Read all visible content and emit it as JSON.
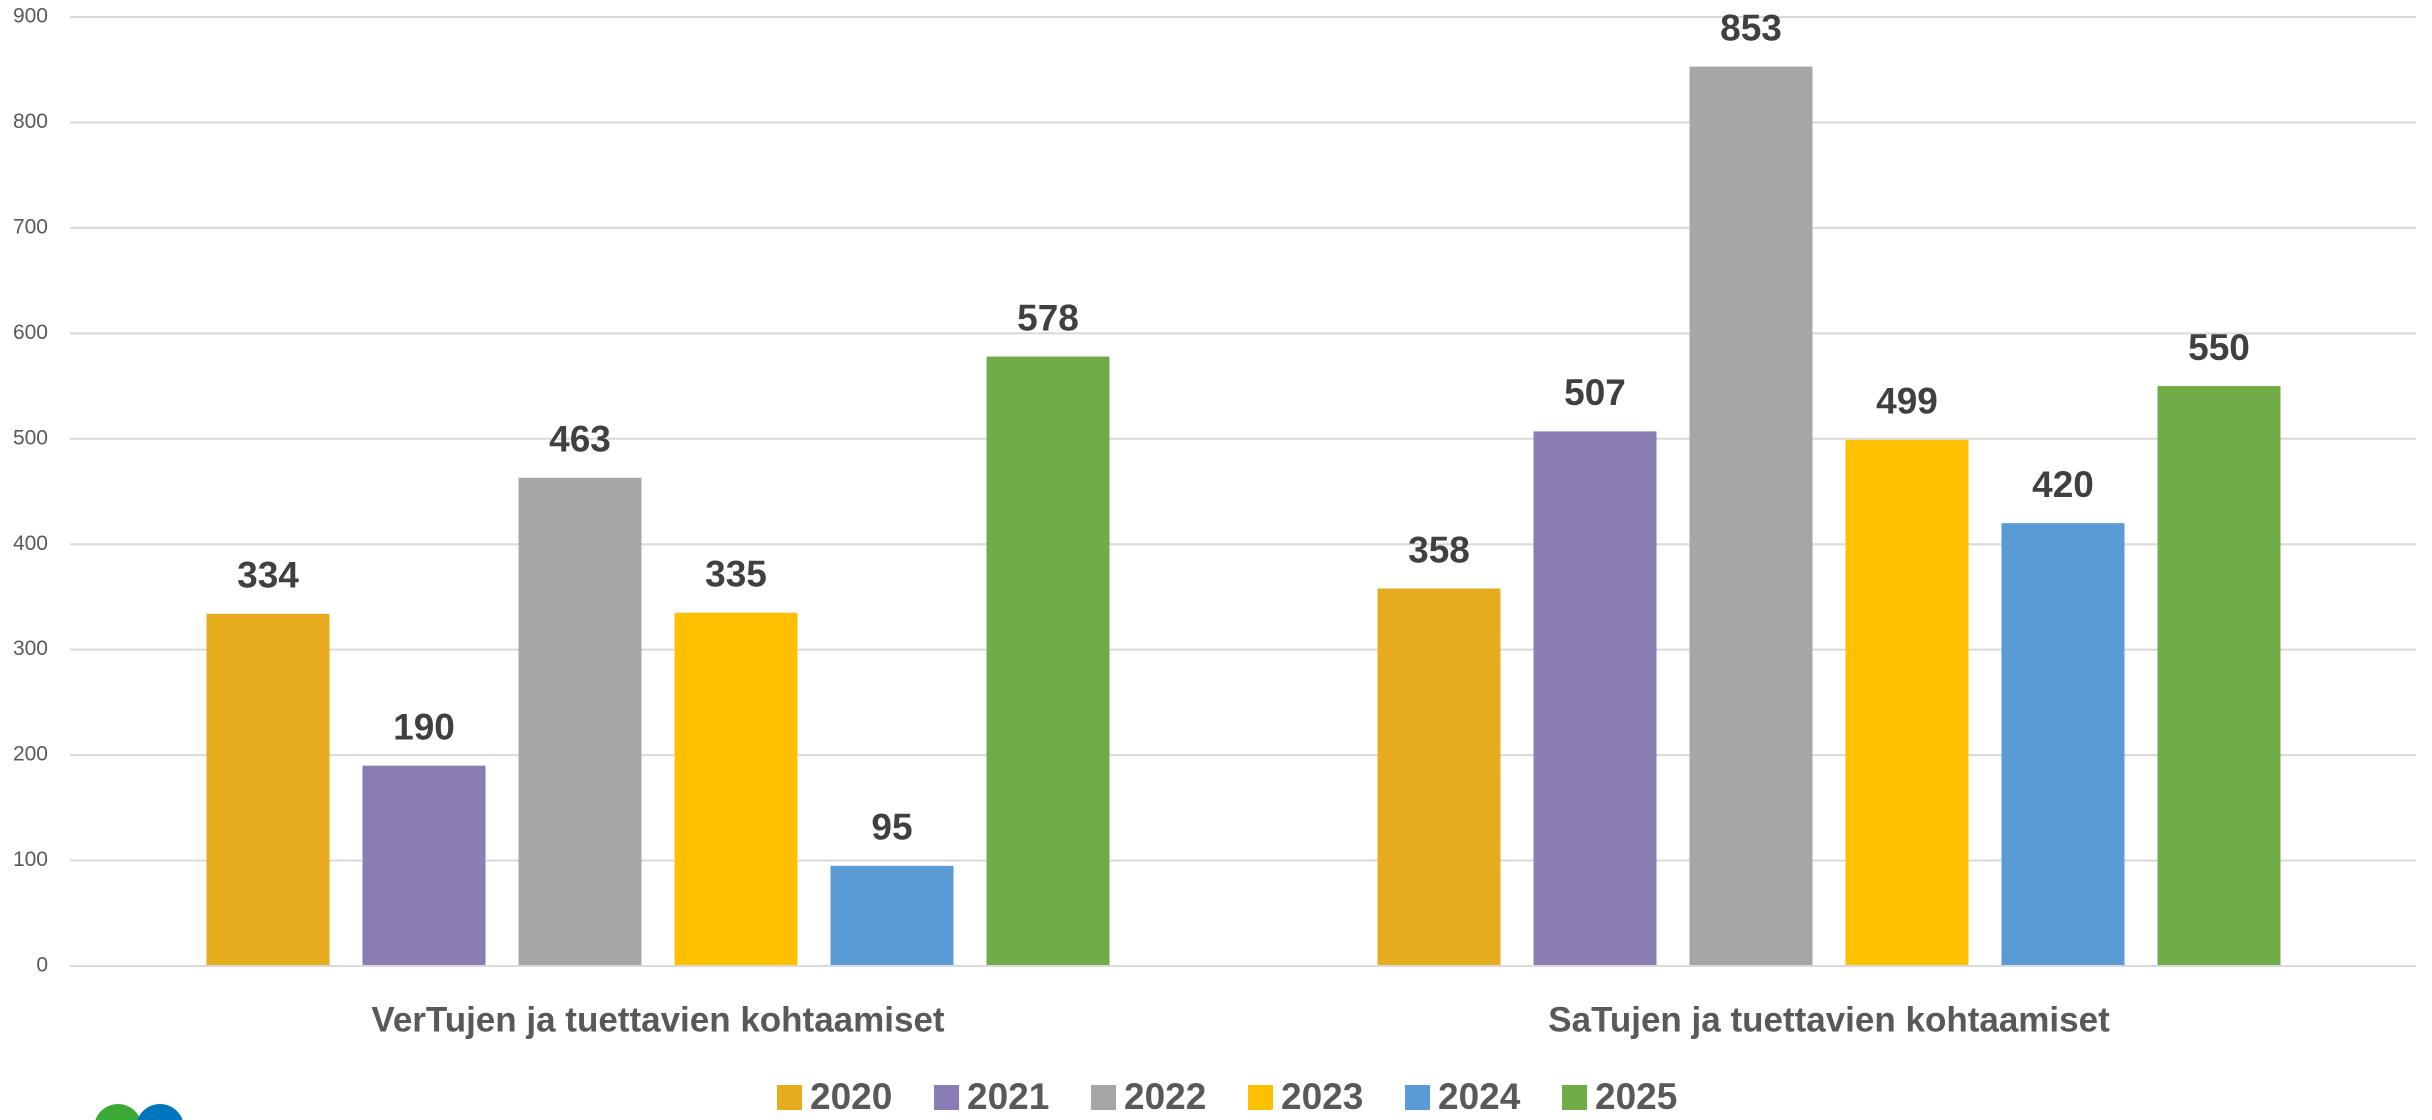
{
  "chart_data": {
    "type": "bar",
    "categories": [
      "VerTujen ja tuettavien kohtaamiset",
      "SaTujen ja tuettavien kohtaamiset"
    ],
    "series": [
      {
        "name": "2020",
        "color": "#E6AC1E",
        "values": [
          334,
          358
        ]
      },
      {
        "name": "2021",
        "color": "#8A7DB4",
        "values": [
          190,
          507
        ]
      },
      {
        "name": "2022",
        "color": "#A6A6A6",
        "values": [
          463,
          853
        ]
      },
      {
        "name": "2023",
        "color": "#FFC000",
        "values": [
          335,
          499
        ]
      },
      {
        "name": "2024",
        "color": "#5B9BD5",
        "values": [
          95,
          420
        ]
      },
      {
        "name": "2025",
        "color": "#70AD47",
        "values": [
          578,
          550
        ]
      }
    ],
    "ylim": [
      0,
      900
    ],
    "yticks": [
      0,
      100,
      200,
      300,
      400,
      500,
      600,
      700,
      800,
      900
    ],
    "grid": true,
    "legend": "bottom"
  }
}
